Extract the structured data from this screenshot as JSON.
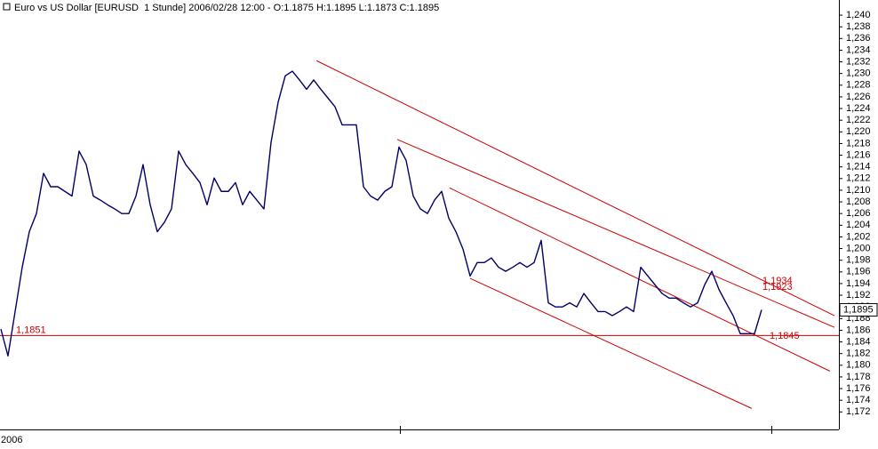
{
  "chart_data": {
    "type": "line",
    "title": "Euro vs US Dollar [EURUSD  1 Stunde] 2006/02/28 12:00 - O:1.1875 H:1.1895 L:1.1873 C:1.1895",
    "x_label": "2006",
    "color": "#000066",
    "values": [
      1.1862,
      1.1816,
      1.1892,
      1.1968,
      1.2029,
      1.206,
      1.2129,
      1.2106,
      1.2106,
      1.2098,
      1.209,
      1.2167,
      1.2144,
      1.209,
      1.2083,
      1.2075,
      1.2068,
      1.206,
      1.206,
      1.209,
      1.2144,
      1.2075,
      1.2029,
      1.2045,
      1.2068,
      1.2167,
      1.2144,
      1.2129,
      1.2113,
      1.2075,
      1.2121,
      1.2098,
      1.2098,
      1.2113,
      1.2075,
      1.2098,
      1.2083,
      1.2068,
      1.2182,
      1.2251,
      1.2296,
      1.2304,
      1.2289,
      1.2273,
      1.2289,
      1.2273,
      1.2258,
      1.2243,
      1.2212,
      1.2212,
      1.2212,
      1.2106,
      1.209,
      1.2083,
      1.2098,
      1.2106,
      1.2174,
      1.2151,
      1.209,
      1.2068,
      1.206,
      1.2083,
      1.2098,
      1.2052,
      1.2029,
      1.1999,
      1.1953,
      1.1976,
      1.1976,
      1.1984,
      1.1968,
      1.1961,
      1.1968,
      1.1976,
      1.1968,
      1.1976,
      1.2014,
      1.1907,
      1.19,
      1.19,
      1.1907,
      1.19,
      1.1923,
      1.1907,
      1.1892,
      1.1892,
      1.1885,
      1.1892,
      1.19,
      1.1892,
      1.1968,
      1.1953,
      1.1938,
      1.1923,
      1.1915,
      1.1915,
      1.1907,
      1.19,
      1.1907,
      1.1938,
      1.1961,
      1.193,
      1.1907,
      1.1885,
      1.1854,
      1.1854,
      1.1854,
      1.1895
    ],
    "trendline_color": "#cc0000",
    "trendlines": [
      {
        "x": [
          44.4,
          117.25
        ],
        "y": [
          1.2322,
          1.1885
        ]
      },
      {
        "x": [
          55.75,
          117.25
        ],
        "y": [
          1.2187,
          1.1865
        ]
      },
      {
        "x": [
          63.1,
          116.6
        ],
        "y": [
          1.2104,
          1.179
        ]
      },
      {
        "x": [
          66,
          105.6
        ],
        "y": [
          1.1949,
          1.1726
        ]
      }
    ],
    "annotations": [
      {
        "label": "1,1851",
        "value": 1.1851,
        "line": true,
        "side": "left"
      },
      {
        "label": "1,1934",
        "value": 1.1934,
        "side": "right"
      },
      {
        "label": "1,1923",
        "value": 1.1923,
        "side": "right"
      },
      {
        "label": "1,1845",
        "value": 1.1845,
        "side": "right"
      }
    ],
    "last_price": {
      "value": 1.1895,
      "label": "1,1895"
    },
    "ylim": [
      1.169,
      1.2426
    ],
    "yticks": [
      {
        "value": 1.172,
        "label": "1,172"
      },
      {
        "value": 1.174,
        "label": "1,174"
      },
      {
        "value": 1.176,
        "label": "1,176"
      },
      {
        "value": 1.178,
        "label": "1,178"
      },
      {
        "value": 1.18,
        "label": "1,180"
      },
      {
        "value": 1.182,
        "label": "1,182"
      },
      {
        "value": 1.184,
        "label": "1,184"
      },
      {
        "value": 1.186,
        "label": "1,186"
      },
      {
        "value": 1.188,
        "label": "1,188"
      },
      {
        "value": 1.19,
        "label": "1,190"
      },
      {
        "value": 1.192,
        "label": "1,192"
      },
      {
        "value": 1.194,
        "label": "1,194"
      },
      {
        "value": 1.196,
        "label": "1,196"
      },
      {
        "value": 1.198,
        "label": "1,198"
      },
      {
        "value": 1.2,
        "label": "1,200"
      },
      {
        "value": 1.202,
        "label": "1,202"
      },
      {
        "value": 1.204,
        "label": "1,204"
      },
      {
        "value": 1.206,
        "label": "1,206"
      },
      {
        "value": 1.208,
        "label": "1,208"
      },
      {
        "value": 1.21,
        "label": "1,210"
      },
      {
        "value": 1.212,
        "label": "1,212"
      },
      {
        "value": 1.214,
        "label": "1,214"
      },
      {
        "value": 1.216,
        "label": "1,216"
      },
      {
        "value": 1.218,
        "label": "1,218"
      },
      {
        "value": 1.22,
        "label": "1,220"
      },
      {
        "value": 1.222,
        "label": "1,222"
      },
      {
        "value": 1.224,
        "label": "1,224"
      },
      {
        "value": 1.226,
        "label": "1,226"
      },
      {
        "value": 1.228,
        "label": "1,228"
      },
      {
        "value": 1.23,
        "label": "1,230"
      },
      {
        "value": 1.232,
        "label": "1,232"
      },
      {
        "value": 1.234,
        "label": "1,234"
      },
      {
        "value": 1.236,
        "label": "1,236"
      },
      {
        "value": 1.238,
        "label": "1,238"
      },
      {
        "value": 1.24,
        "label": "1,240"
      }
    ]
  }
}
